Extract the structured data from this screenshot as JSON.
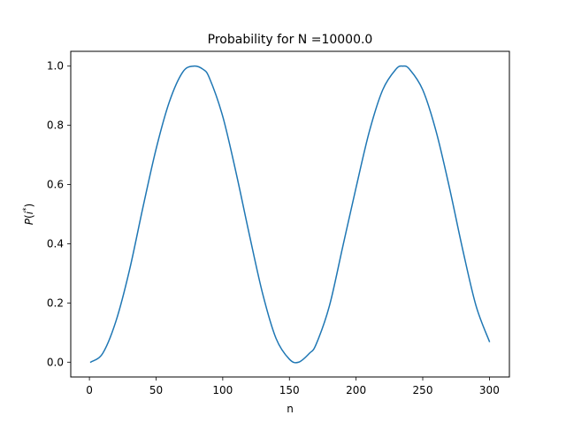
{
  "chart_data": {
    "type": "line",
    "title": "Probability for N =10000.0",
    "xlabel": "n",
    "ylabel": "P(i*)",
    "ylabel_parts": {
      "base": "P",
      "open": "(",
      "var": "i",
      "sup": "*",
      "close": ")"
    },
    "xlim": [
      -14,
      315
    ],
    "ylim": [
      -0.05,
      1.05
    ],
    "xticks": [
      0,
      50,
      100,
      150,
      200,
      250,
      300
    ],
    "yticks": [
      0.0,
      0.2,
      0.4,
      0.6,
      0.8,
      1.0
    ],
    "ytick_labels": [
      "0.0",
      "0.2",
      "0.4",
      "0.6",
      "0.8",
      "1.0"
    ],
    "grid": false,
    "series": [
      {
        "color": "#1f77b4",
        "x": [
          1,
          10,
          20,
          30,
          40,
          50,
          60,
          70,
          78,
          85,
          90,
          100,
          110,
          120,
          130,
          140,
          150,
          157,
          165,
          170,
          180,
          190,
          200,
          210,
          220,
          230,
          235,
          240,
          250,
          260,
          270,
          280,
          290,
          300
        ],
        "y": [
          0.0002,
          0.03,
          0.14,
          0.31,
          0.52,
          0.72,
          0.88,
          0.98,
          1.0,
          0.99,
          0.96,
          0.83,
          0.64,
          0.43,
          0.23,
          0.08,
          0.01,
          0.0,
          0.03,
          0.06,
          0.19,
          0.39,
          0.59,
          0.78,
          0.92,
          0.99,
          1.0,
          0.99,
          0.92,
          0.78,
          0.59,
          0.38,
          0.19,
          0.07
        ]
      }
    ]
  }
}
